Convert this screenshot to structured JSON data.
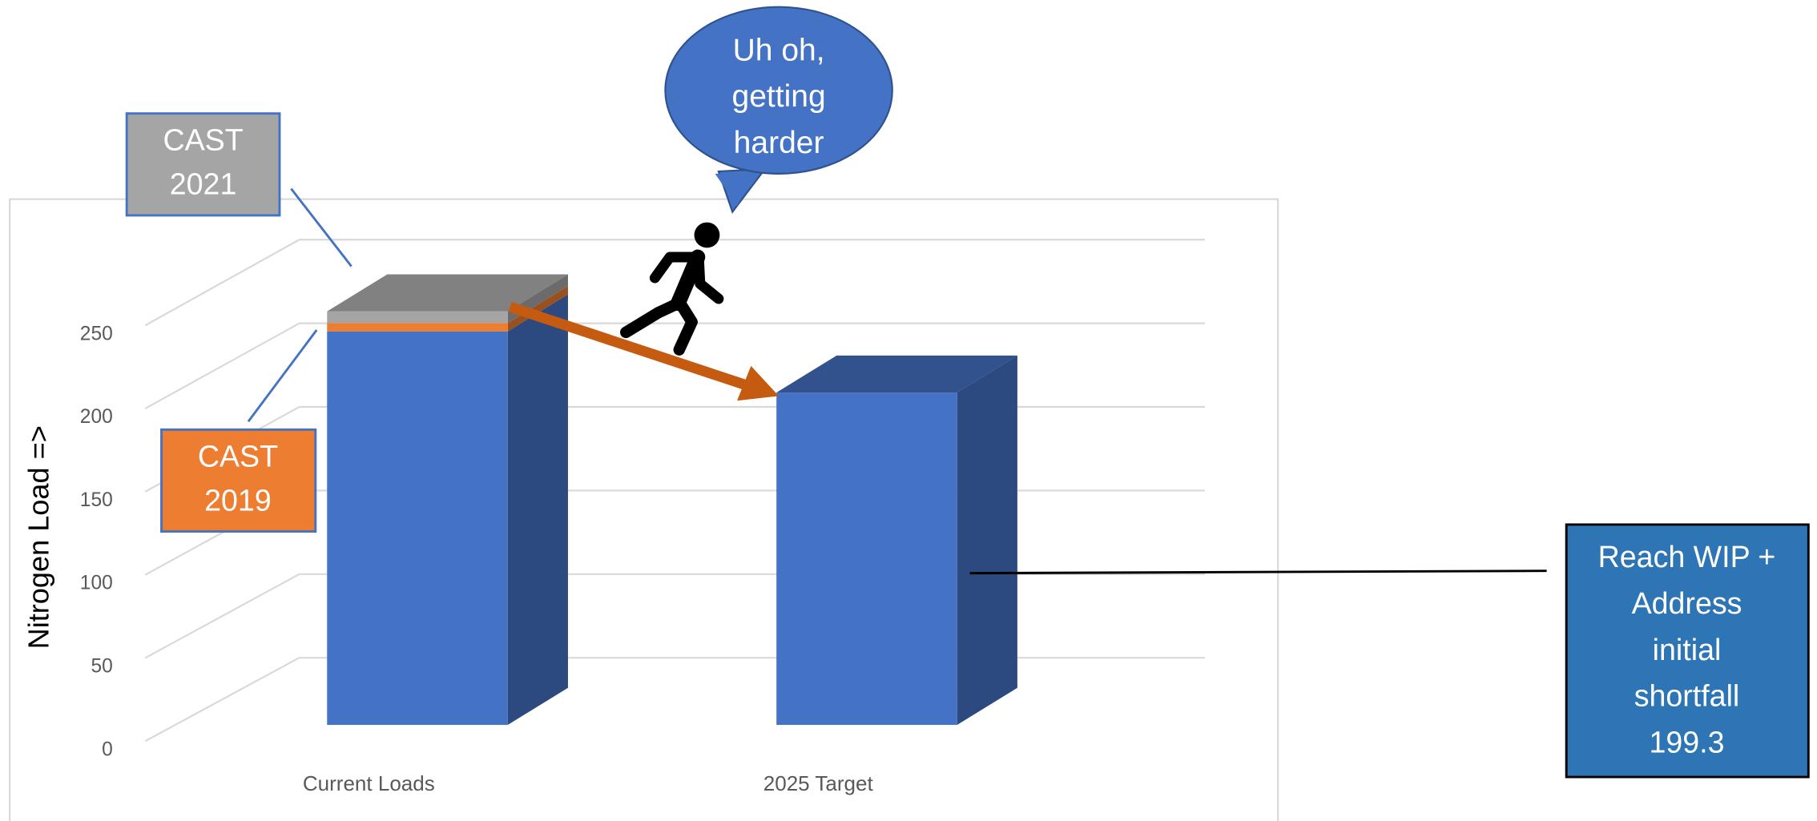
{
  "chart_data": {
    "type": "bar3d_stacked",
    "y_axis_label": "Nitrogen Load =>",
    "categories": [
      "Current Loads",
      "2025 Target"
    ],
    "series": [
      {
        "color": "#4472c4",
        "values": [
          236,
          199.3
        ]
      },
      {
        "color": "#ed7d31",
        "values": [
          5,
          null
        ]
      },
      {
        "color": "#a5a5a5",
        "values": [
          7,
          null
        ]
      }
    ],
    "ylim": [
      0,
      250
    ],
    "yticks": [
      0,
      50,
      100,
      150,
      200,
      250
    ],
    "grid": true,
    "annotations": [
      {
        "lines": [
          "CAST",
          "2021"
        ]
      },
      {
        "lines": [
          "CAST",
          "2019"
        ]
      },
      {
        "lines": [
          "Uh oh,",
          "getting",
          "harder"
        ]
      },
      {
        "lines": [
          "Reach WIP +",
          "Address",
          "initial",
          "shortfall",
          "199.3"
        ]
      }
    ]
  }
}
